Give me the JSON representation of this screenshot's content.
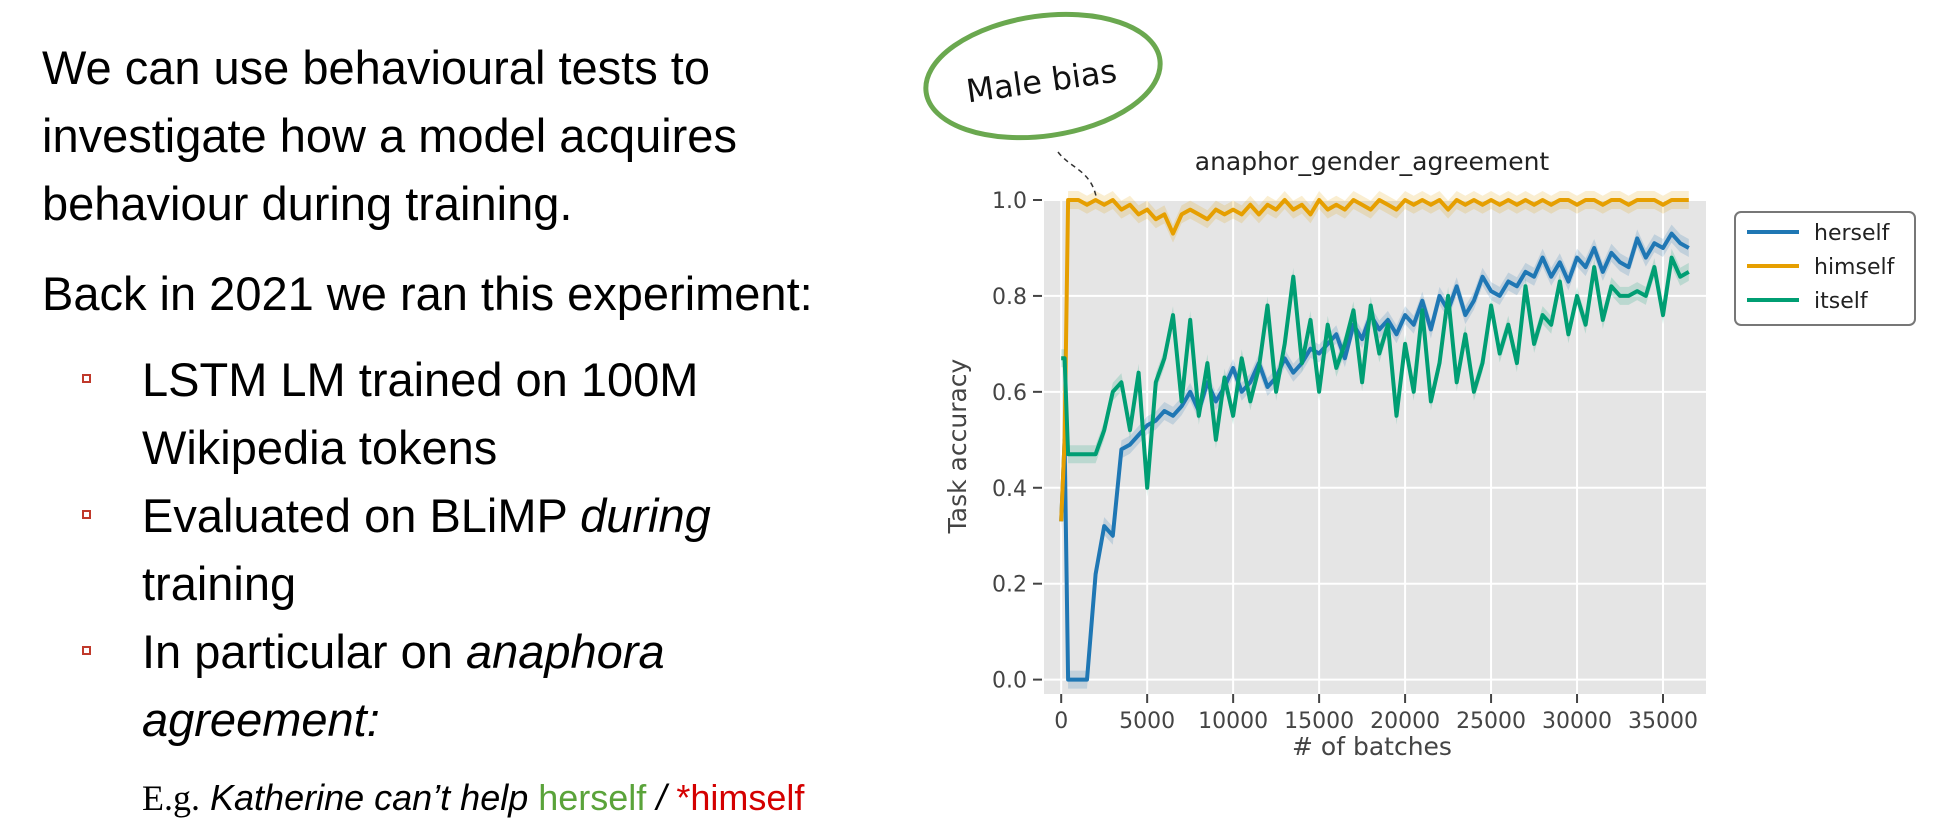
{
  "slide": {
    "intro": "We can use behavioural tests to investigate how a model acquires behaviour during training.",
    "intro_lines": [
      "We can use behavioural tests to",
      "investigate how a model acquires",
      "behaviour during training."
    ],
    "experiment": "Back in 2021 we ran this experiment:",
    "bullets": [
      {
        "lines": [
          "LSTM LM trained on 100M",
          "Wikipedia tokens"
        ]
      },
      {
        "text_a": "Evaluated on BLiMP ",
        "text_em": "during",
        "text_b": "training"
      },
      {
        "text_a": "In particular on ",
        "text_em": "anaphora",
        "text_b": "agreement:"
      }
    ],
    "example": {
      "eg": "E.g.",
      "sentence": "Katherine can’t help",
      "good": "herself",
      "slash": "/",
      "bad": "*himself"
    },
    "colors": {
      "bullet": "#c0392b",
      "good": "#5aa33a",
      "bad": "#d40000"
    }
  },
  "callout": {
    "text": "Male bias",
    "border_color": "#6aa84f"
  },
  "chart_data": {
    "type": "line",
    "title": "anaphor_gender_agreement",
    "xlabel": "# of batches",
    "ylabel": "Task accuracy",
    "xlim": [
      -1000,
      37500
    ],
    "ylim": [
      -0.03,
      1.0
    ],
    "x_ticks": [
      0,
      5000,
      10000,
      15000,
      20000,
      25000,
      30000,
      35000
    ],
    "y_ticks": [
      0.0,
      0.2,
      0.4,
      0.6,
      0.8,
      1.0
    ],
    "y_tick_labels": [
      "0.0",
      "0.2",
      "0.4",
      "0.6",
      "0.8",
      "1.0"
    ],
    "background": "#e5e5e5",
    "grid": true,
    "legend_position": "outside-right-top",
    "x": [
      0,
      200,
      400,
      600,
      800,
      1000,
      1500,
      2000,
      2500,
      3000,
      3500,
      4000,
      4500,
      5000,
      5500,
      6000,
      6500,
      7000,
      7500,
      8000,
      8500,
      9000,
      9500,
      10000,
      10500,
      11000,
      11500,
      12000,
      12500,
      13000,
      13500,
      14000,
      14500,
      15000,
      15500,
      16000,
      16500,
      17000,
      17500,
      18000,
      18500,
      19000,
      19500,
      20000,
      20500,
      21000,
      21500,
      22000,
      22500,
      23000,
      23500,
      24000,
      24500,
      25000,
      25500,
      26000,
      26500,
      27000,
      27500,
      28000,
      28500,
      29000,
      29500,
      30000,
      30500,
      31000,
      31500,
      32000,
      32500,
      33000,
      33500,
      34000,
      34500,
      35000,
      35500,
      36000,
      36500
    ],
    "series": [
      {
        "name": "herself",
        "color": "#1f77b4",
        "values": [
          0.33,
          0.5,
          0.0,
          0.0,
          0.0,
          0.0,
          0.0,
          0.22,
          0.32,
          0.3,
          0.48,
          0.49,
          0.51,
          0.53,
          0.54,
          0.56,
          0.55,
          0.57,
          0.6,
          0.56,
          0.62,
          0.58,
          0.61,
          0.65,
          0.6,
          0.62,
          0.66,
          0.61,
          0.63,
          0.67,
          0.64,
          0.66,
          0.69,
          0.68,
          0.7,
          0.72,
          0.67,
          0.74,
          0.71,
          0.76,
          0.73,
          0.75,
          0.72,
          0.76,
          0.74,
          0.79,
          0.73,
          0.8,
          0.77,
          0.82,
          0.76,
          0.79,
          0.84,
          0.81,
          0.8,
          0.83,
          0.82,
          0.85,
          0.84,
          0.88,
          0.84,
          0.87,
          0.83,
          0.88,
          0.86,
          0.9,
          0.85,
          0.89,
          0.87,
          0.86,
          0.92,
          0.88,
          0.91,
          0.9,
          0.93,
          0.91,
          0.9
        ]
      },
      {
        "name": "himself",
        "color": "#e69f00",
        "values": [
          0.33,
          0.5,
          1.0,
          1.0,
          1.0,
          1.0,
          0.99,
          1.0,
          0.99,
          1.0,
          0.98,
          0.99,
          0.97,
          0.98,
          0.96,
          0.97,
          0.93,
          0.97,
          0.98,
          0.97,
          0.96,
          0.98,
          0.97,
          0.98,
          0.97,
          0.99,
          0.97,
          0.99,
          0.98,
          1.0,
          0.98,
          0.99,
          0.97,
          1.0,
          0.98,
          0.99,
          0.98,
          1.0,
          0.99,
          0.98,
          1.0,
          0.99,
          0.98,
          1.0,
          0.99,
          1.0,
          0.99,
          1.0,
          0.98,
          1.0,
          0.99,
          1.0,
          0.99,
          1.0,
          0.99,
          1.0,
          0.99,
          1.0,
          0.99,
          1.0,
          0.99,
          1.0,
          1.0,
          0.99,
          1.0,
          1.0,
          0.99,
          1.0,
          1.0,
          0.99,
          1.0,
          1.0,
          1.0,
          0.99,
          1.0,
          1.0,
          1.0
        ]
      },
      {
        "name": "itself",
        "color": "#009e73",
        "values": [
          0.67,
          0.67,
          0.47,
          0.47,
          0.47,
          0.47,
          0.47,
          0.47,
          0.52,
          0.6,
          0.62,
          0.52,
          0.64,
          0.4,
          0.62,
          0.67,
          0.76,
          0.58,
          0.75,
          0.55,
          0.66,
          0.5,
          0.63,
          0.55,
          0.67,
          0.58,
          0.65,
          0.78,
          0.6,
          0.7,
          0.84,
          0.66,
          0.75,
          0.6,
          0.74,
          0.65,
          0.7,
          0.77,
          0.62,
          0.78,
          0.68,
          0.74,
          0.55,
          0.7,
          0.6,
          0.77,
          0.58,
          0.66,
          0.8,
          0.62,
          0.72,
          0.6,
          0.66,
          0.78,
          0.68,
          0.74,
          0.66,
          0.82,
          0.7,
          0.76,
          0.74,
          0.83,
          0.72,
          0.8,
          0.74,
          0.86,
          0.75,
          0.82,
          0.8,
          0.8,
          0.81,
          0.8,
          0.86,
          0.76,
          0.88,
          0.84,
          0.85
        ]
      }
    ]
  }
}
